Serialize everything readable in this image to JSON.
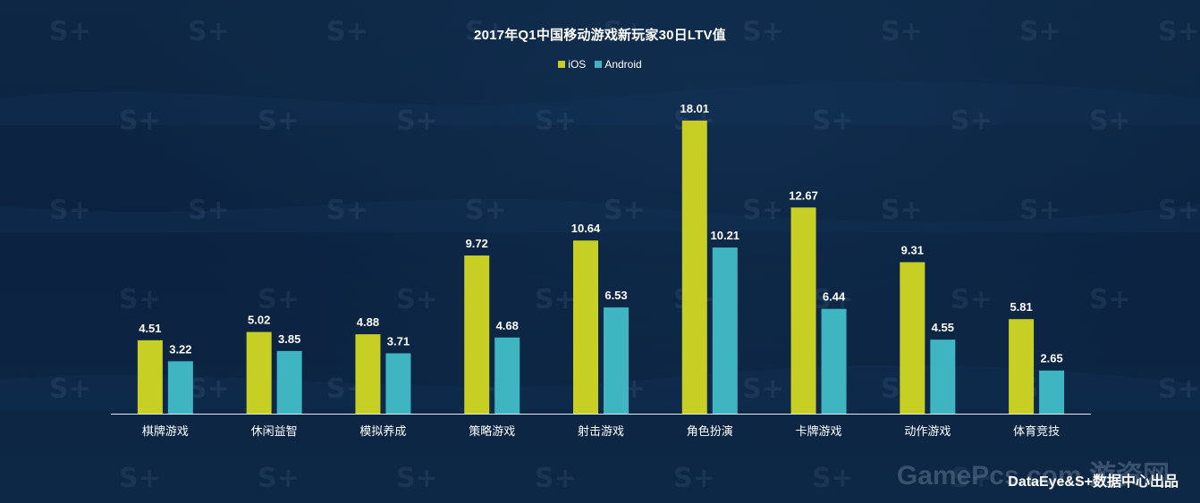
{
  "chart_data": {
    "type": "bar",
    "title": "2017年Q1中国移动游戏新玩家30日LTV值",
    "categories": [
      "棋牌游戏",
      "休闲益智",
      "模拟养成",
      "策略游戏",
      "射击游戏",
      "角色扮演",
      "卡牌游戏",
      "动作游戏",
      "体育竞技"
    ],
    "series": [
      {
        "name": "iOS",
        "color": "#c8cf24",
        "values": [
          4.51,
          5.02,
          4.88,
          9.72,
          10.64,
          18.01,
          12.67,
          9.31,
          5.81
        ]
      },
      {
        "name": "Android",
        "color": "#3fb5c1",
        "values": [
          3.22,
          3.85,
          3.71,
          4.68,
          6.53,
          10.21,
          6.44,
          4.55,
          2.65
        ]
      }
    ],
    "ylim": [
      0,
      20
    ],
    "grid": false,
    "legend_position": "top-center"
  },
  "watermark": {
    "site_text": "GamePcs.com 游资网"
  },
  "credit": "DataEye&S+数据中心出品"
}
